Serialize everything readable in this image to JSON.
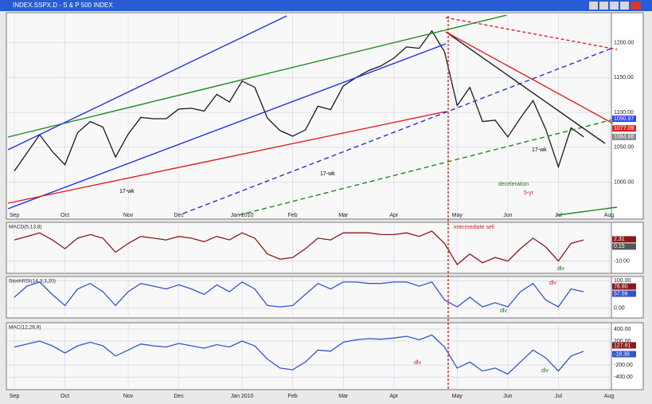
{
  "window_title": "INDEX.SSPX.D - S & P 500 INDEX",
  "chart_data": [
    {
      "type": "line",
      "categories": [
        "Sep",
        null,
        null,
        null,
        "Oct",
        null,
        null,
        null,
        null,
        "Nov",
        null,
        null,
        null,
        "Dec",
        null,
        null,
        null,
        null,
        "Jan 2010",
        null,
        null,
        null,
        "Feb",
        null,
        null,
        null,
        "Mar",
        null,
        null,
        null,
        "Apr",
        null,
        null,
        null,
        null,
        "May",
        null,
        null,
        null,
        "Jun",
        null,
        null,
        null,
        "Jul",
        null,
        null,
        null,
        "Aug"
      ],
      "series": [
        {
          "color": "#1a1a1a",
          "values": [
            1016,
            1042,
            1068,
            1044,
            1025,
            1071,
            1087,
            1079,
            1036,
            1069,
            1093,
            1091,
            1091,
            1105,
            1106,
            1102,
            1126,
            1115,
            1145,
            1136,
            1092,
            1074,
            1066,
            1075,
            1109,
            1104,
            1138,
            1150,
            1160,
            1167,
            1178,
            1194,
            1192,
            1217,
            1187,
            1110,
            1136,
            1087,
            1089,
            1065,
            1092,
            1117,
            1076,
            1022,
            1078,
            1065,
            null,
            null
          ]
        }
      ],
      "ylim": [
        947,
        1243
      ],
      "yticks": [
        {
          "value": 1000,
          "label": "1000.00"
        },
        {
          "value": 1050,
          "label": "1050.00"
        },
        {
          "value": 1100,
          "label": "1100.00"
        },
        {
          "value": 1150,
          "label": "1150.00"
        },
        {
          "value": 1200,
          "label": "1200.00"
        }
      ],
      "readouts": [
        {
          "value": 1090.97,
          "color": "#3344ff"
        },
        {
          "value": 1077.09,
          "color": "#e02020"
        },
        {
          "value": 1064.88,
          "color": "#888888"
        }
      ],
      "annotations": [
        {
          "text": "17-wk",
          "color": "#000000"
        },
        {
          "text": "17-wk",
          "color": "#000000"
        },
        {
          "text": "17-wk",
          "color": "#000000"
        },
        {
          "text": "deceleration",
          "color": "#1a7a1a"
        },
        {
          "text": "5-yr",
          "color": "#d02020"
        }
      ]
    },
    {
      "type": "line",
      "title": "MACD(5,13,8)",
      "series": [
        {
          "color": "#8b1a1a",
          "values": [
            2,
            4,
            6,
            2,
            -3,
            3,
            5,
            3,
            -5,
            0,
            4,
            3,
            2,
            4,
            3,
            1,
            4,
            2,
            6,
            3,
            -6,
            -9,
            -8,
            -3,
            3,
            2,
            6,
            6,
            6,
            5,
            5,
            6,
            4,
            7,
            0,
            -12,
            -6,
            -11,
            -8,
            -10,
            -3,
            3,
            -2,
            -10,
            0,
            2,
            null,
            null
          ]
        }
      ],
      "ylim": [
        -17,
        12
      ],
      "yticks": [
        {
          "value": -10,
          "label": "-10.00"
        }
      ],
      "readouts": [
        {
          "value": 2.31,
          "color": "#8b1a1a"
        },
        {
          "value": 0.15,
          "color": "#555555"
        }
      ],
      "annotations": [
        {
          "text": "intermediate sell",
          "color": "#d02020"
        },
        {
          "text": "dlv",
          "color": "#1a7a1a"
        }
      ]
    },
    {
      "type": "line",
      "title": "StochRSI(14,3,3,20)",
      "series": [
        {
          "color": "#3355cc",
          "values": [
            40,
            80,
            95,
            50,
            10,
            70,
            90,
            60,
            10,
            60,
            90,
            80,
            70,
            85,
            70,
            50,
            85,
            60,
            95,
            70,
            10,
            5,
            10,
            50,
            90,
            70,
            95,
            95,
            90,
            90,
            95,
            95,
            80,
            95,
            30,
            5,
            40,
            5,
            20,
            5,
            60,
            90,
            30,
            5,
            70,
            60,
            null,
            null
          ]
        }
      ],
      "ylim": [
        -35,
        115
      ],
      "yticks": [
        {
          "value": 0,
          "label": "0.00"
        },
        {
          "value": 100,
          "label": "100.00"
        }
      ],
      "readouts": [
        {
          "value": 78.8,
          "label": "78.80",
          "color": "#8b1a1a"
        },
        {
          "value": 57.56,
          "color": "#3355cc"
        }
      ],
      "annotations": [
        {
          "text": "dlv",
          "color": "#1a7a1a"
        },
        {
          "text": "dlv",
          "color": "#d02020"
        }
      ]
    },
    {
      "type": "line",
      "title": "MAC(12,26,9)",
      "series": [
        {
          "color": "#3355cc",
          "values": [
            100,
            150,
            200,
            120,
            0,
            120,
            180,
            120,
            -50,
            50,
            150,
            120,
            100,
            160,
            120,
            80,
            140,
            100,
            200,
            120,
            -100,
            -250,
            -280,
            -150,
            50,
            30,
            180,
            220,
            240,
            230,
            250,
            280,
            220,
            300,
            100,
            -250,
            -150,
            -300,
            -250,
            -350,
            -150,
            50,
            -80,
            -300,
            -50,
            30,
            null,
            null
          ]
        }
      ],
      "ylim": [
        -610,
        505
      ],
      "yticks": [
        {
          "value": -400,
          "label": "-400.00"
        },
        {
          "value": -200,
          "label": "-200.00"
        },
        {
          "value": 200,
          "label": "200.00"
        },
        {
          "value": 400,
          "label": "400.00"
        }
      ],
      "readouts": [
        {
          "value": 127.81,
          "color": "#8b1a1a"
        },
        {
          "value": -18.38,
          "color": "#3355cc"
        }
      ],
      "annotations": [
        {
          "text": "dlv",
          "color": "#d02020"
        },
        {
          "text": "dlv",
          "color": "#1a7a1a"
        }
      ]
    }
  ]
}
